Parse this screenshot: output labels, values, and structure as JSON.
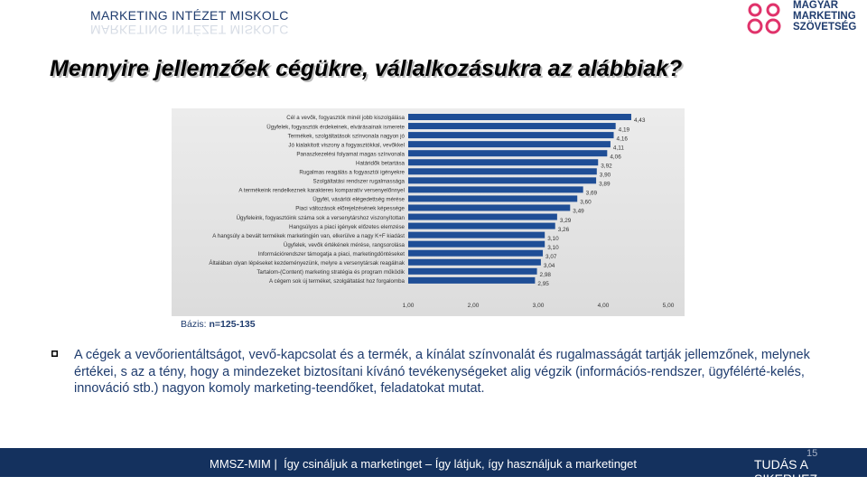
{
  "header": {
    "brand": "MARKETING INTÉZET MISKOLC",
    "logo_lines": [
      "MAGYAR",
      "MARKETING",
      "SZÖVETSÉG"
    ],
    "title": "Mennyire jellemzőek cégükre, vállalkozásukra az alábbiak?"
  },
  "basis": {
    "label": "Bázis:",
    "value": "n=125-135"
  },
  "body_text": "A cégek a vevőorientáltságot, vevő-kapcsolat és a termék, a kínálat színvonalát és rugalmasságát tartják jellemzőnek, melynek értékei, s az a tény, hogy a mindezeket biztosítani kívánó tevékenységeket alig végzik (információs-rendszer, ügyfélérté-kelés, innováció stb.) nagyon komoly marketing-teendőket, feladatokat mutat.",
  "footer": {
    "text": "MMSZ-MIM |  Így csináljuk a marketinget – Így látjuk, így használjuk a marketinget",
    "right": "TUDÁS A SIKERHEZ",
    "page": "15"
  },
  "colors": {
    "bar": "#1f4e96",
    "panel": "#e8e8e8",
    "footer": "#14315e",
    "brand": "#1f3c6e"
  },
  "chart_data": {
    "type": "bar",
    "orientation": "horizontal",
    "categories": [
      "Cél a vevők, fogyasztók minél jobb kiszolgálása",
      "Ügyfelek, fogyasztók érdekeinek, elvárásainak ismerete",
      "Termékek, szolgáltatások színvonala nagyon jó",
      "Jó kialakított viszony a fogyasztókkal, vevőkkel",
      "Panaszkezelési folyamat magas színvonala",
      "Határidők betartása",
      "Rugalmas reagálás a fogyasztói igényekre",
      "Szolgáltatási rendszer rugalmassága",
      "A termékeink rendelkeznek karakteres komparatív versenyelőnnyel",
      "Ügyfél, vásárlói elégedettség mérése",
      "Piaci változások előrejelzésének képessége",
      "Ügyfeleink, fogyasztóink száma sok a versenytárshoz viszonyítottan",
      "Hangsúlyos a piaci igények előzetes elemzése",
      "A hangsúly a bevált termékek marketingjén van, elkerülve a nagy K+F kiadást",
      "Ügyfelek, vevők értékének mérése, rangsorolása",
      "Információrendszer támogatja a piaci, marketingdöntéseket",
      "Általában olyan lépéseket kezdeményezünk, melyre a versenytársak reagálnak",
      "Tartalom-(Content) marketing stratégia és program működik",
      "A cégem sok új terméket, szolgáltatást hoz forgalomba"
    ],
    "values": [
      4.43,
      4.19,
      4.16,
      4.11,
      4.06,
      3.92,
      3.9,
      3.89,
      3.69,
      3.6,
      3.49,
      3.29,
      3.26,
      3.1,
      3.1,
      3.07,
      3.04,
      2.98,
      2.95
    ],
    "value_labels": [
      "4,43",
      "4,19",
      "4,16",
      "4,11",
      "4,06",
      "3,92",
      "3,90",
      "3,89",
      "3,69",
      "3,60",
      "3,49",
      "3,29",
      "3,26",
      "3,10",
      "3,10",
      "3,07",
      "3,04",
      "2,98",
      "2,95"
    ],
    "xlim": [
      1,
      5
    ],
    "xticks": [
      1,
      2,
      3,
      4,
      5
    ],
    "xtick_labels": [
      "1,00",
      "2,00",
      "3,00",
      "4,00",
      "5,00"
    ],
    "title": "",
    "xlabel": "",
    "ylabel": "",
    "grid": false,
    "legend": "none"
  }
}
